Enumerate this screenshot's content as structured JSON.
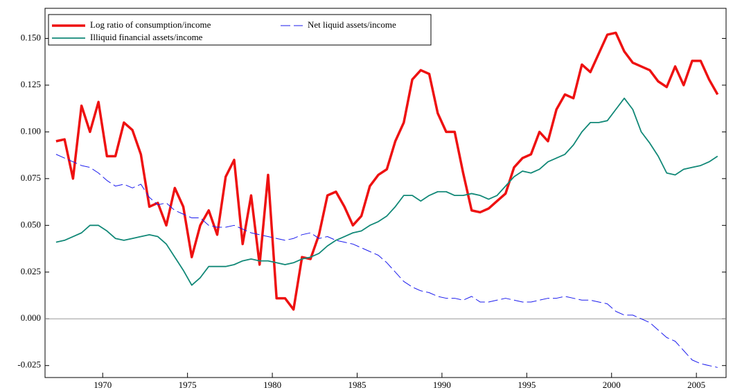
{
  "chart_data": {
    "type": "line",
    "x": [
      1967.25,
      1967.75,
      1968.25,
      1968.75,
      1969.25,
      1969.75,
      1970.25,
      1970.75,
      1971.25,
      1971.75,
      1972.25,
      1972.75,
      1973.25,
      1973.75,
      1974.25,
      1974.75,
      1975.25,
      1975.75,
      1976.25,
      1976.75,
      1977.25,
      1977.75,
      1978.25,
      1978.75,
      1979.25,
      1979.75,
      1980.25,
      1980.75,
      1981.25,
      1981.75,
      1982.25,
      1982.75,
      1983.25,
      1983.75,
      1984.25,
      1984.75,
      1985.25,
      1985.75,
      1986.25,
      1986.75,
      1987.25,
      1987.75,
      1988.25,
      1988.75,
      1989.25,
      1989.75,
      1990.25,
      1990.75,
      1991.25,
      1991.75,
      1992.25,
      1992.75,
      1993.25,
      1993.75,
      1994.25,
      1994.75,
      1995.25,
      1995.75,
      1996.25,
      1996.75,
      1997.25,
      1997.75,
      1998.25,
      1998.75,
      1999.25,
      1999.75,
      2000.25,
      2000.75,
      2001.25,
      2001.75,
      2002.25,
      2002.75,
      2003.25,
      2003.75,
      2004.25,
      2004.75,
      2005.25,
      2005.75,
      2006.25
    ],
    "series": [
      {
        "name": "Log ratio of consumption/income",
        "color": "#ee1111",
        "width": 3.5,
        "dashed": false,
        "values": [
          0.095,
          0.096,
          0.075,
          0.114,
          0.1,
          0.116,
          0.087,
          0.087,
          0.105,
          0.101,
          0.088,
          0.06,
          0.062,
          0.05,
          0.07,
          0.06,
          0.033,
          0.05,
          0.058,
          0.045,
          0.076,
          0.085,
          0.04,
          0.066,
          0.029,
          0.077,
          0.011,
          0.011,
          0.005,
          0.033,
          0.032,
          0.045,
          0.066,
          0.068,
          0.06,
          0.05,
          0.055,
          0.071,
          0.077,
          0.08,
          0.095,
          0.105,
          0.128,
          0.133,
          0.131,
          0.11,
          0.1,
          0.1,
          0.078,
          0.058,
          0.057,
          0.059,
          0.063,
          0.067,
          0.081,
          0.086,
          0.088,
          0.1,
          0.095,
          0.112,
          0.12,
          0.118,
          0.136,
          0.132,
          0.142,
          0.152,
          0.153,
          0.143,
          0.137,
          0.135,
          0.133,
          0.127,
          0.124,
          0.135,
          0.125,
          0.138,
          0.138,
          0.128,
          0.12
        ]
      },
      {
        "name": "Net liquid assets/income",
        "color": "#1a1aee",
        "width": 1,
        "dashed": true,
        "values": [
          0.088,
          0.086,
          0.084,
          0.082,
          0.081,
          0.078,
          0.074,
          0.071,
          0.072,
          0.07,
          0.072,
          0.065,
          0.061,
          0.062,
          0.058,
          0.056,
          0.054,
          0.054,
          0.05,
          0.049,
          0.049,
          0.05,
          0.048,
          0.046,
          0.045,
          0.044,
          0.043,
          0.042,
          0.043,
          0.045,
          0.046,
          0.043,
          0.044,
          0.042,
          0.041,
          0.04,
          0.038,
          0.036,
          0.034,
          0.03,
          0.025,
          0.02,
          0.017,
          0.015,
          0.014,
          0.012,
          0.011,
          0.011,
          0.01,
          0.012,
          0.009,
          0.009,
          0.01,
          0.011,
          0.01,
          0.009,
          0.009,
          0.01,
          0.011,
          0.011,
          0.012,
          0.011,
          0.01,
          0.01,
          0.009,
          0.008,
          0.004,
          0.002,
          0.002,
          0.0,
          -0.002,
          -0.006,
          -0.01,
          -0.012,
          -0.017,
          -0.022,
          -0.024,
          -0.025,
          -0.026
        ]
      },
      {
        "name": "Illiquid financial assets/income",
        "color": "#118877",
        "width": 1.8,
        "dashed": false,
        "values": [
          0.041,
          0.042,
          0.044,
          0.046,
          0.05,
          0.05,
          0.047,
          0.043,
          0.042,
          0.043,
          0.044,
          0.045,
          0.044,
          0.04,
          0.033,
          0.026,
          0.018,
          0.022,
          0.028,
          0.028,
          0.028,
          0.029,
          0.031,
          0.032,
          0.031,
          0.031,
          0.03,
          0.029,
          0.03,
          0.032,
          0.033,
          0.035,
          0.039,
          0.042,
          0.044,
          0.046,
          0.047,
          0.05,
          0.052,
          0.055,
          0.06,
          0.066,
          0.066,
          0.063,
          0.066,
          0.068,
          0.068,
          0.066,
          0.066,
          0.067,
          0.066,
          0.064,
          0.066,
          0.071,
          0.076,
          0.079,
          0.078,
          0.08,
          0.084,
          0.086,
          0.088,
          0.093,
          0.1,
          0.105,
          0.105,
          0.106,
          0.112,
          0.118,
          0.112,
          0.1,
          0.094,
          0.087,
          0.078,
          0.077,
          0.08,
          0.081,
          0.082,
          0.084,
          0.087
        ]
      }
    ],
    "xlim": [
      1966.6,
      2006.75
    ],
    "ylim": [
      -0.0314,
      0.1661
    ],
    "xticks": [
      1970,
      1975,
      1980,
      1985,
      1990,
      1995,
      2000,
      2005
    ],
    "yticks": [
      -0.025,
      {
        "value": 0,
        "label": "0.000"
      },
      0.025,
      {
        "value": 0.05,
        "label": "0.050"
      },
      0.075,
      {
        "value": 0.1,
        "label": "0.100"
      },
      0.125,
      {
        "value": 0.15,
        "label": "0.150"
      }
    ],
    "zero_line": true,
    "legend": "upper left"
  }
}
